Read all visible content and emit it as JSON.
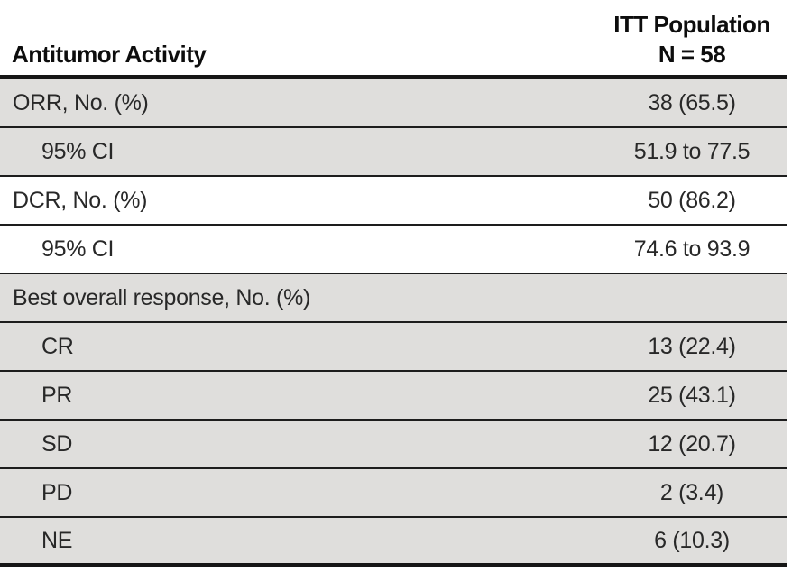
{
  "table": {
    "header": {
      "col1": "Antitumor Activity",
      "col2_line1": "ITT Population",
      "col2_line2": "N = 58"
    },
    "rows": [
      {
        "label": "ORR, No. (%)",
        "value": "38 (65.5)"
      },
      {
        "label": "95% CI",
        "value": "51.9 to 77.5"
      },
      {
        "label": "DCR, No. (%)",
        "value": "50 (86.2)"
      },
      {
        "label": "95% CI",
        "value": "74.6 to 93.9"
      },
      {
        "label": "Best overall response, No. (%)",
        "value": ""
      },
      {
        "label": "CR",
        "value": "13 (22.4)"
      },
      {
        "label": "PR",
        "value": "25 (43.1)"
      },
      {
        "label": "SD",
        "value": "12 (20.7)"
      },
      {
        "label": "PD",
        "value": "2 (3.4)"
      },
      {
        "label": "NE",
        "value": "6 (10.3)"
      }
    ]
  },
  "colors": {
    "row_shade": "#dfdedc",
    "rule": "#1d1d1d",
    "header_rule": "#161616",
    "text": "#282828"
  }
}
